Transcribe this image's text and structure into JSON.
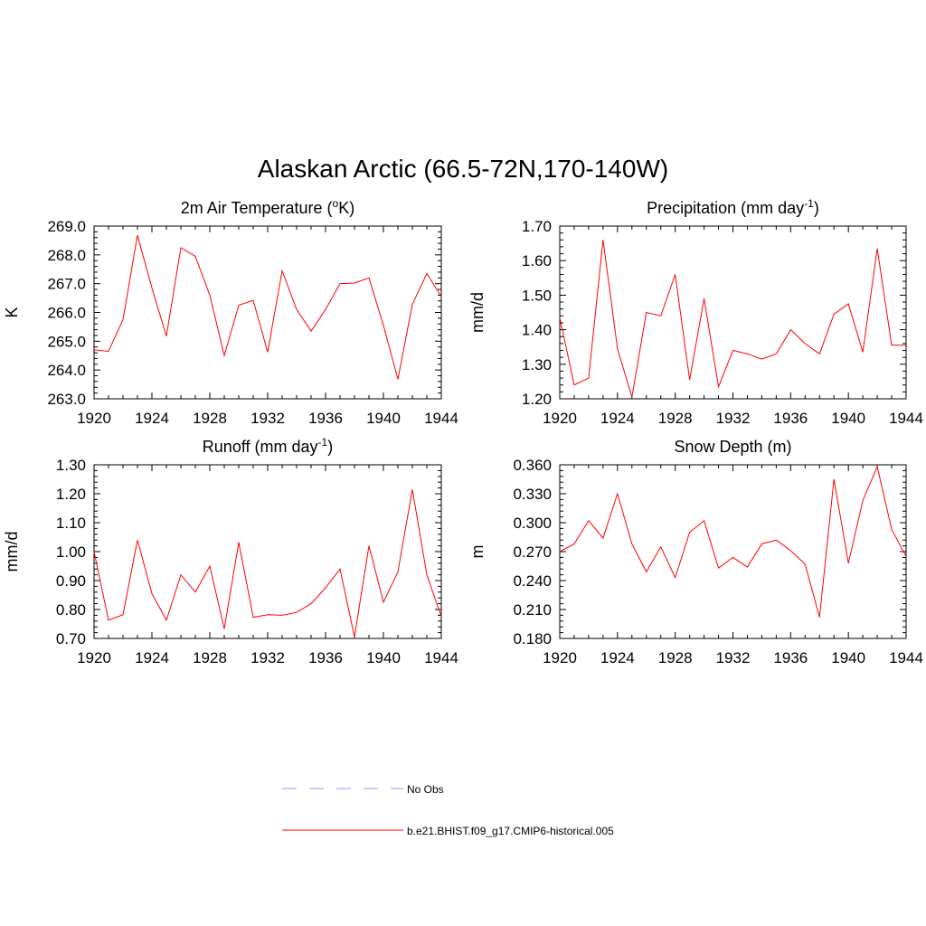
{
  "figure": {
    "title": "Alaskan Arctic (66.5-72N,170-140W)"
  },
  "chart_data": [
    {
      "type": "line",
      "title": "2m Air Temperature (",
      "title_sup": "o",
      "title_after": "K)",
      "xlabel": "",
      "ylabel": "K",
      "xlim": [
        1920,
        1944
      ],
      "ylim": [
        263.0,
        269.0
      ],
      "xticks": [
        1920,
        1924,
        1928,
        1932,
        1936,
        1940,
        1944
      ],
      "yticks": [
        "263.0",
        "264.0",
        "265.0",
        "266.0",
        "267.0",
        "268.0",
        "269.0"
      ],
      "grid": false,
      "x": [
        1920,
        1921,
        1922,
        1923,
        1924,
        1925,
        1926,
        1927,
        1928,
        1929,
        1930,
        1931,
        1932,
        1933,
        1934,
        1935,
        1936,
        1937,
        1938,
        1939,
        1940,
        1941,
        1942,
        1943,
        1944
      ],
      "series": [
        {
          "color": "#ff0000",
          "values": [
            264.7,
            264.65,
            265.75,
            268.68,
            266.85,
            265.18,
            268.25,
            267.95,
            266.6,
            264.5,
            266.25,
            266.42,
            264.62,
            267.45,
            266.1,
            265.35,
            266.1,
            267.0,
            267.02,
            267.2,
            265.55,
            263.68,
            266.28,
            267.35,
            266.55
          ]
        }
      ]
    },
    {
      "type": "line",
      "title": "Precipitation (mm day",
      "title_sup": "-1",
      "title_after": ")",
      "xlabel": "",
      "ylabel": "mm/d",
      "xlim": [
        1920,
        1944
      ],
      "ylim": [
        1.2,
        1.7
      ],
      "xticks": [
        1920,
        1924,
        1928,
        1932,
        1936,
        1940,
        1944
      ],
      "yticks": [
        "1.20",
        "1.30",
        "1.40",
        "1.50",
        "1.60",
        "1.70"
      ],
      "grid": false,
      "x": [
        1920,
        1921,
        1922,
        1923,
        1924,
        1925,
        1926,
        1927,
        1928,
        1929,
        1930,
        1931,
        1932,
        1933,
        1934,
        1935,
        1936,
        1937,
        1938,
        1939,
        1940,
        1941,
        1942,
        1943,
        1944
      ],
      "series": [
        {
          "color": "#ff0000",
          "values": [
            1.435,
            1.24,
            1.26,
            1.66,
            1.345,
            1.205,
            1.45,
            1.44,
            1.56,
            1.255,
            1.49,
            1.235,
            1.34,
            1.33,
            1.315,
            1.33,
            1.4,
            1.36,
            1.33,
            1.445,
            1.475,
            1.335,
            1.635,
            1.355,
            1.355
          ]
        }
      ]
    },
    {
      "type": "line",
      "title": "Runoff (mm day",
      "title_sup": "-1",
      "title_after": ")",
      "xlabel": "",
      "ylabel": "mm/d",
      "xlim": [
        1920,
        1944
      ],
      "ylim": [
        0.7,
        1.3
      ],
      "xticks": [
        1920,
        1924,
        1928,
        1932,
        1936,
        1940,
        1944
      ],
      "yticks": [
        "0.70",
        "0.80",
        "0.90",
        "1.00",
        "1.10",
        "1.20",
        "1.30"
      ],
      "grid": false,
      "x": [
        1920,
        1921,
        1922,
        1923,
        1924,
        1925,
        1926,
        1927,
        1928,
        1929,
        1930,
        1931,
        1932,
        1933,
        1934,
        1935,
        1936,
        1937,
        1938,
        1939,
        1940,
        1941,
        1942,
        1943,
        1944
      ],
      "series": [
        {
          "color": "#ff0000",
          "values": [
            1.0,
            0.763,
            0.782,
            1.04,
            0.855,
            0.763,
            0.92,
            0.86,
            0.95,
            0.733,
            1.032,
            0.773,
            0.782,
            0.78,
            0.79,
            0.82,
            0.875,
            0.94,
            0.705,
            1.02,
            0.825,
            0.93,
            1.215,
            0.92,
            0.775
          ]
        }
      ]
    },
    {
      "type": "line",
      "title": "Snow Depth (m)",
      "title_sup": "",
      "title_after": "",
      "xlabel": "",
      "ylabel": "m",
      "xlim": [
        1920,
        1944
      ],
      "ylim": [
        0.18,
        0.36
      ],
      "xticks": [
        1920,
        1924,
        1928,
        1932,
        1936,
        1940,
        1944
      ],
      "yticks": [
        "0.180",
        "0.210",
        "0.240",
        "0.270",
        "0.300",
        "0.330",
        "0.360"
      ],
      "grid": false,
      "x": [
        1920,
        1921,
        1922,
        1923,
        1924,
        1925,
        1926,
        1927,
        1928,
        1929,
        1930,
        1931,
        1932,
        1933,
        1934,
        1935,
        1936,
        1937,
        1938,
        1939,
        1940,
        1941,
        1942,
        1943,
        1944
      ],
      "series": [
        {
          "color": "#ff0000",
          "values": [
            0.27,
            0.278,
            0.302,
            0.284,
            0.33,
            0.278,
            0.249,
            0.275,
            0.243,
            0.29,
            0.302,
            0.253,
            0.264,
            0.254,
            0.278,
            0.282,
            0.271,
            0.257,
            0.202,
            0.345,
            0.258,
            0.323,
            0.358,
            0.293,
            0.265
          ]
        }
      ]
    }
  ],
  "legend": {
    "placement": "bottom-center",
    "items": [
      {
        "label": "No Obs",
        "color": "#9a9aff",
        "style": "dashed"
      },
      {
        "label": "b.e21.BHIST.f09_g17.CMIP6-historical.005",
        "color": "#ff0000",
        "style": "solid"
      }
    ]
  }
}
